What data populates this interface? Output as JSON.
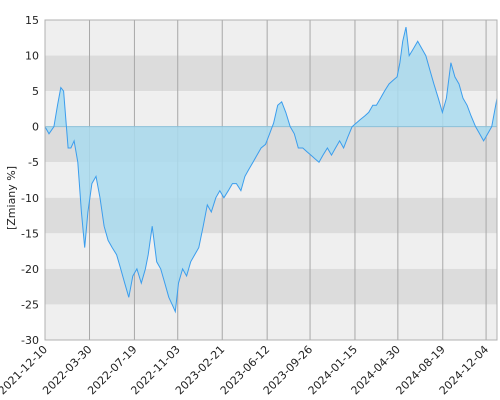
{
  "chart_data": {
    "type": "area",
    "title": "",
    "xlabel": "",
    "ylabel": "[Zmiany %]",
    "ylim": [
      -30,
      15
    ],
    "xlim": [
      "2021-12-10",
      "2024-12-31"
    ],
    "y_ticks": [
      15,
      10,
      5,
      0,
      -5,
      -10,
      -15,
      -20,
      -25,
      -30
    ],
    "x_ticks": [
      "2021-12-10",
      "2022-03-30",
      "2022-07-19",
      "2022-11-03",
      "2023-02-21",
      "2023-06-12",
      "2023-09-26",
      "2024-01-15",
      "2024-04-30",
      "2024-08-19",
      "2024-12-04"
    ],
    "grid": true,
    "baseline": 0,
    "series": [
      {
        "name": "",
        "x": [
          "2021-12-10",
          "2021-12-20",
          "2022-01-01",
          "2022-01-10",
          "2022-01-18",
          "2022-01-25",
          "2022-02-05",
          "2022-02-12",
          "2022-02-20",
          "2022-03-01",
          "2022-03-10",
          "2022-03-18",
          "2022-03-26",
          "2022-04-05",
          "2022-04-15",
          "2022-04-25",
          "2022-05-05",
          "2022-05-15",
          "2022-05-25",
          "2022-06-05",
          "2022-06-15",
          "2022-06-25",
          "2022-07-05",
          "2022-07-15",
          "2022-07-25",
          "2022-08-05",
          "2022-08-15",
          "2022-08-22",
          "2022-09-01",
          "2022-09-12",
          "2022-09-22",
          "2022-10-02",
          "2022-10-12",
          "2022-10-20",
          "2022-10-28",
          "2022-11-05",
          "2022-11-15",
          "2022-11-25",
          "2022-12-05",
          "2022-12-15",
          "2022-12-25",
          "2023-01-05",
          "2023-01-15",
          "2023-01-25",
          "2023-02-05",
          "2023-02-15",
          "2023-02-25",
          "2023-03-08",
          "2023-03-18",
          "2023-03-28",
          "2023-04-08",
          "2023-04-18",
          "2023-04-28",
          "2023-05-08",
          "2023-05-18",
          "2023-05-28",
          "2023-06-08",
          "2023-06-18",
          "2023-06-28",
          "2023-07-08",
          "2023-07-18",
          "2023-07-28",
          "2023-08-08",
          "2023-08-18",
          "2023-08-28",
          "2023-09-08",
          "2023-09-18",
          "2023-09-28",
          "2023-10-08",
          "2023-10-18",
          "2023-10-28",
          "2023-11-08",
          "2023-11-18",
          "2023-11-28",
          "2023-12-08",
          "2023-12-18",
          "2023-12-28",
          "2024-01-08",
          "2024-01-18",
          "2024-01-28",
          "2024-02-08",
          "2024-02-18",
          "2024-02-28",
          "2024-03-08",
          "2024-03-18",
          "2024-03-28",
          "2024-04-08",
          "2024-04-18",
          "2024-04-28",
          "2024-05-05",
          "2024-05-12",
          "2024-05-20",
          "2024-05-28",
          "2024-06-08",
          "2024-06-18",
          "2024-06-28",
          "2024-07-08",
          "2024-07-18",
          "2024-07-28",
          "2024-08-08",
          "2024-08-18",
          "2024-08-28",
          "2024-09-08",
          "2024-09-18",
          "2024-09-28",
          "2024-10-08",
          "2024-10-18",
          "2024-10-28",
          "2024-11-08",
          "2024-11-18",
          "2024-11-28",
          "2024-12-08",
          "2024-12-18",
          "2024-12-31"
        ],
        "y": [
          0,
          -1,
          0,
          3,
          5.5,
          5,
          -3,
          -3,
          -2,
          -5,
          -12,
          -17,
          -12,
          -8,
          -7,
          -10,
          -14,
          -16,
          -17,
          -18,
          -20,
          -22,
          -24,
          -21,
          -20,
          -22,
          -20,
          -18,
          -14,
          -19,
          -20,
          -22,
          -24,
          -25,
          -26,
          -22,
          -20,
          -21,
          -19,
          -18,
          -17,
          -14,
          -11,
          -12,
          -10,
          -9,
          -10,
          -9,
          -8,
          -8,
          -9,
          -7,
          -6,
          -5,
          -4,
          -3,
          -2.5,
          -1,
          0.5,
          3,
          3.5,
          2,
          0,
          -1,
          -3,
          -3,
          -3.5,
          -4,
          -4.5,
          -5,
          -4,
          -3,
          -4,
          -3,
          -2,
          -3,
          -1.5,
          0,
          0.5,
          1,
          1.5,
          2,
          3,
          3,
          4,
          5,
          6,
          6.5,
          7,
          9,
          12,
          14,
          10,
          11,
          12,
          11,
          10,
          8,
          6,
          4,
          2,
          4,
          9,
          7,
          6,
          4,
          3,
          1.5,
          0,
          -1,
          -2,
          -1,
          0,
          4
        ]
      }
    ]
  }
}
